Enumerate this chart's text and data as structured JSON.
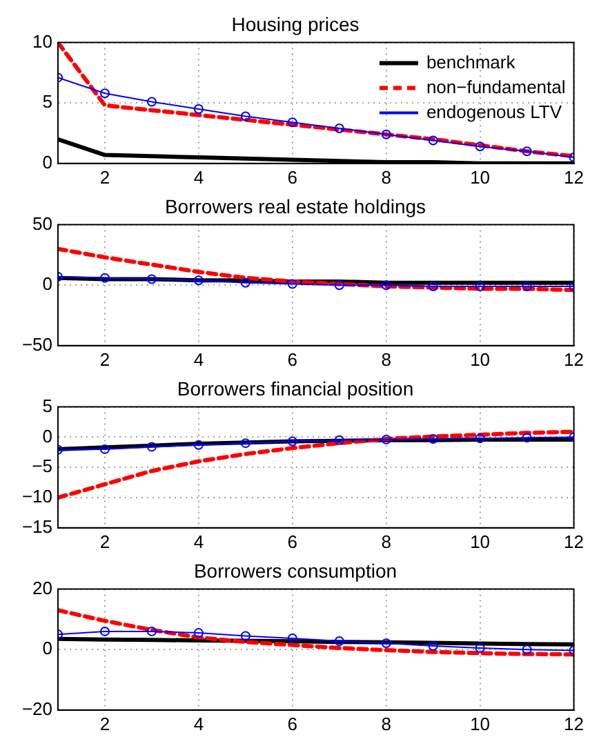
{
  "chart_data": [
    {
      "type": "line",
      "title": "Housing prices",
      "x": [
        1,
        2,
        3,
        4,
        5,
        6,
        7,
        8,
        9,
        10,
        11,
        12
      ],
      "xlim": [
        1,
        12
      ],
      "xticks": [
        2,
        4,
        6,
        8,
        10,
        12
      ],
      "ylim": [
        0,
        10
      ],
      "yticks": [
        0,
        5,
        10
      ],
      "grid": true,
      "legend": "top right",
      "series": [
        {
          "name": "benchmark",
          "color": "#000000",
          "line_style": "solid",
          "marker": "none",
          "values": [
            2,
            0.7,
            0.6,
            0.5,
            0.4,
            0.3,
            0.2,
            0.1,
            0.1,
            0,
            0,
            0
          ]
        },
        {
          "name": "non−fundamental",
          "color": "#ff0000",
          "line_style": "dashed",
          "marker": "none",
          "values": [
            10,
            4.8,
            4.4,
            4.0,
            3.6,
            3.2,
            2.8,
            2.4,
            2.0,
            1.5,
            1.0,
            0.6
          ]
        },
        {
          "name": "endogenous LTV",
          "color": "#0000ff",
          "line_style": "solid",
          "marker": "circle",
          "values": [
            7.1,
            5.8,
            5.1,
            4.5,
            3.9,
            3.4,
            2.9,
            2.4,
            1.9,
            1.4,
            1.0,
            0.5
          ]
        }
      ]
    },
    {
      "type": "line",
      "title": "Borrowers real estate holdings",
      "x": [
        1,
        2,
        3,
        4,
        5,
        6,
        7,
        8,
        9,
        10,
        11,
        12
      ],
      "xlim": [
        1,
        12
      ],
      "xticks": [
        2,
        4,
        6,
        8,
        10,
        12
      ],
      "ylim": [
        -50,
        50
      ],
      "yticks": [
        -50,
        0,
        50
      ],
      "grid": true,
      "series": [
        {
          "color": "#000000",
          "line_style": "solid",
          "marker": "none",
          "values": [
            6,
            5,
            5,
            4,
            4,
            3,
            3,
            2,
            2,
            2,
            2,
            2
          ]
        },
        {
          "color": "#ff0000",
          "line_style": "dashed",
          "marker": "none",
          "values": [
            30,
            23,
            17,
            11,
            6,
            3,
            1,
            -1,
            -2,
            -3,
            -3,
            -4
          ]
        },
        {
          "color": "#0000ff",
          "line_style": "solid",
          "marker": "circle",
          "values": [
            7,
            6,
            5,
            4,
            2,
            1,
            0,
            0,
            -1,
            -1,
            -1,
            -1
          ]
        }
      ]
    },
    {
      "type": "line",
      "title": "Borrowers financial position",
      "x": [
        1,
        2,
        3,
        4,
        5,
        6,
        7,
        8,
        9,
        10,
        11,
        12
      ],
      "xlim": [
        1,
        12
      ],
      "xticks": [
        2,
        4,
        6,
        8,
        10,
        12
      ],
      "ylim": [
        -15,
        5
      ],
      "yticks": [
        -15,
        -10,
        -5,
        0,
        5
      ],
      "grid": true,
      "series": [
        {
          "color": "#000000",
          "line_style": "solid",
          "marker": "none",
          "values": [
            -2,
            -1.7,
            -1.4,
            -1.1,
            -0.9,
            -0.7,
            -0.6,
            -0.5,
            -0.5,
            -0.4,
            -0.4,
            -0.4
          ]
        },
        {
          "color": "#ff0000",
          "line_style": "dashed",
          "marker": "none",
          "values": [
            -10,
            -7.8,
            -5.6,
            -4,
            -2.8,
            -1.8,
            -1,
            -0.3,
            0.1,
            0.4,
            0.7,
            0.9
          ]
        },
        {
          "color": "#0000ff",
          "line_style": "solid",
          "marker": "circle",
          "values": [
            -2.1,
            -2,
            -1.6,
            -1.3,
            -1,
            -0.7,
            -0.5,
            -0.4,
            -0.3,
            -0.2,
            -0.1,
            0
          ]
        }
      ]
    },
    {
      "type": "line",
      "title": "Borrowers consumption",
      "x": [
        1,
        2,
        3,
        4,
        5,
        6,
        7,
        8,
        9,
        10,
        11,
        12
      ],
      "xlim": [
        1,
        12
      ],
      "xticks": [
        2,
        4,
        6,
        8,
        10,
        12
      ],
      "ylim": [
        -20,
        20
      ],
      "yticks": [
        -20,
        0,
        20
      ],
      "grid": true,
      "series": [
        {
          "color": "#000000",
          "line_style": "solid",
          "marker": "none",
          "values": [
            3.5,
            3.3,
            3.2,
            3,
            2.9,
            2.7,
            2.5,
            2.4,
            2.2,
            2,
            1.8,
            1.7
          ]
        },
        {
          "color": "#ff0000",
          "line_style": "dashed",
          "marker": "none",
          "values": [
            13,
            9.5,
            6.5,
            4,
            2.5,
            1.5,
            0.5,
            -0.2,
            -0.8,
            -1.2,
            -1.5,
            -1.6
          ]
        },
        {
          "color": "#0000ff",
          "line_style": "solid",
          "marker": "circle",
          "values": [
            5,
            6,
            6,
            5.5,
            4.5,
            3.7,
            2.8,
            2.1,
            1.2,
            0.5,
            0,
            -0.3
          ]
        }
      ]
    }
  ]
}
